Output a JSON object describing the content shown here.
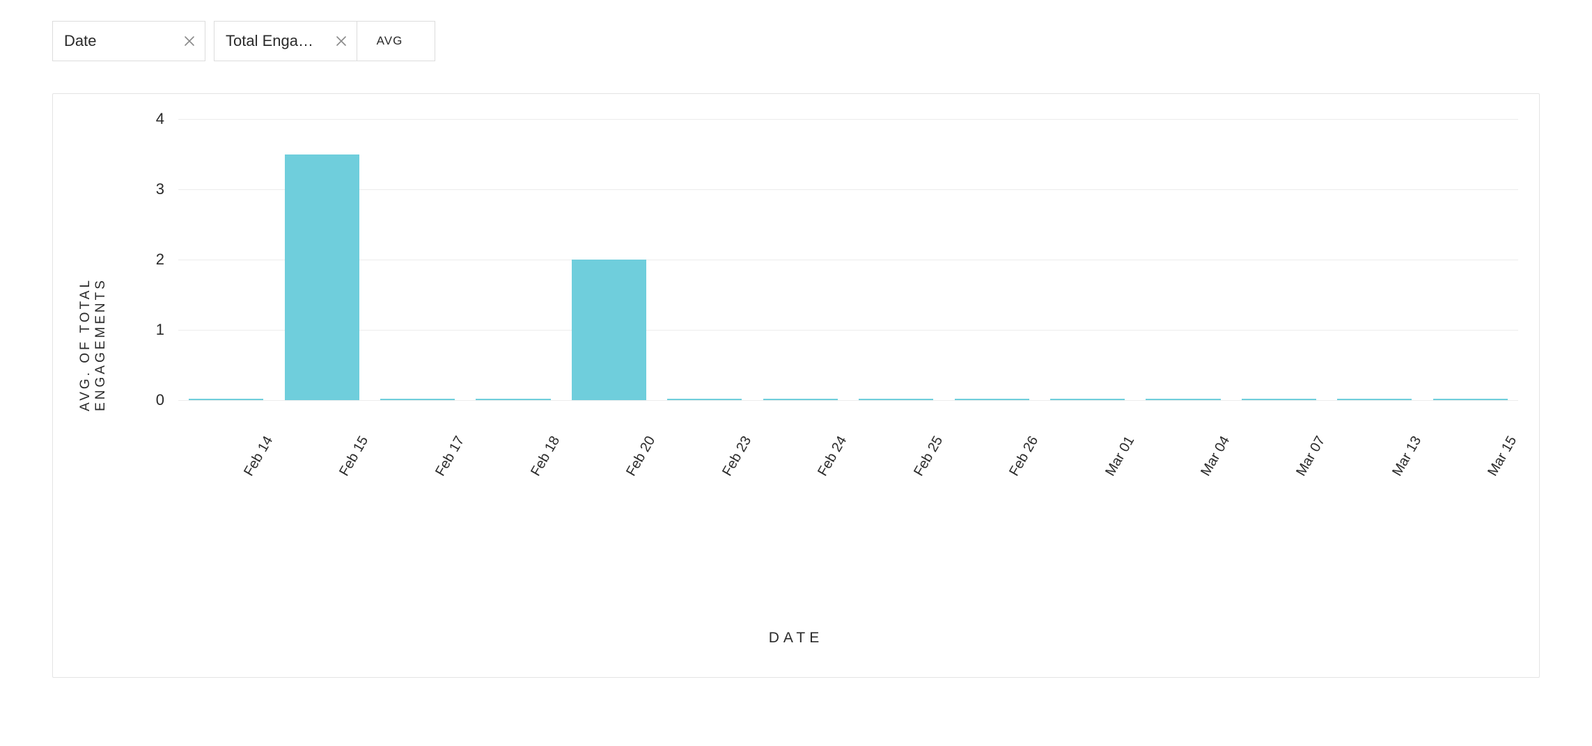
{
  "pills": {
    "dimension": {
      "label": "Date"
    },
    "metric": {
      "label": "Total Engage…",
      "agg": "AVG"
    }
  },
  "chart": {
    "type": "bar",
    "y_label": "AVG. OF TOTAL ENGAGEMENTS",
    "x_label": "DATE",
    "ylim": [
      0,
      4
    ],
    "ytick_step": 1,
    "yticks": [
      0,
      1,
      2,
      3,
      4
    ],
    "categories": [
      "Feb 14",
      "Feb 15",
      "Feb 17",
      "Feb 18",
      "Feb 20",
      "Feb 23",
      "Feb 24",
      "Feb 25",
      "Feb 26",
      "Mar 01",
      "Mar 04",
      "Mar 07",
      "Mar 13",
      "Mar 15"
    ],
    "values": [
      0.02,
      3.5,
      0.02,
      0.02,
      2.0,
      0.02,
      0.02,
      0.02,
      0.02,
      0.02,
      0.02,
      0.02,
      0.02,
      0.02
    ],
    "bar_color": "#6fcedc",
    "grid_color": "#ececec",
    "axis_color": "#d0d0d0",
    "background_color": "#ffffff",
    "bar_width_ratio": 0.78,
    "label_fontsize": 19,
    "tick_fontsize": 22,
    "xtick_fontsize": 20,
    "xtick_rotation_deg": -60
  }
}
